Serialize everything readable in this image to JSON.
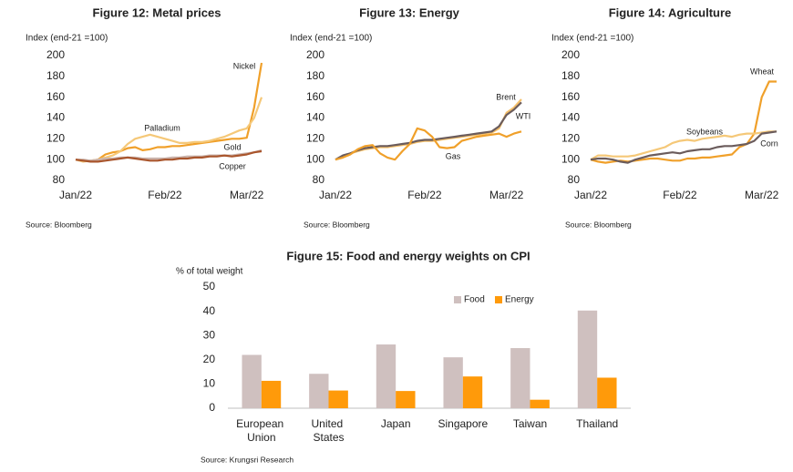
{
  "chart_data": [
    {
      "type": "line",
      "title": "Figure 12: Metal prices",
      "y_label": "Index (end-21 =100)",
      "source": "Source: Bloomberg",
      "categories": [
        "Jan/22",
        null,
        null,
        null,
        null,
        null,
        null,
        null,
        null,
        null,
        null,
        null,
        "Feb/22",
        null,
        null,
        null,
        null,
        null,
        null,
        null,
        null,
        null,
        null,
        "Mar/22",
        null,
        null
      ],
      "ylim": [
        80,
        200
      ],
      "yticks": [
        80,
        100,
        120,
        140,
        160,
        180,
        200
      ],
      "series": [
        {
          "name": "Nickel",
          "color": "#f0a02a",
          "values": [
            100,
            99,
            99,
            100,
            105,
            107,
            108,
            111,
            112,
            109,
            110,
            112,
            112,
            113,
            113,
            114,
            115,
            116,
            117,
            118,
            119,
            120,
            120,
            121,
            150,
            193
          ]
        },
        {
          "name": "Palladium",
          "color": "#f5c878",
          "values": [
            100,
            98,
            99,
            100,
            102,
            104,
            108,
            115,
            120,
            122,
            124,
            122,
            120,
            118,
            116,
            116,
            117,
            117,
            118,
            120,
            122,
            125,
            128,
            130,
            140,
            160
          ]
        },
        {
          "name": "Gold",
          "color": "#c9b2aa",
          "values": [
            100,
            100,
            99,
            100,
            101,
            101,
            102,
            102,
            102,
            101,
            101,
            101,
            101,
            102,
            102,
            103,
            103,
            103,
            104,
            104,
            104,
            104,
            105,
            106,
            107,
            109
          ]
        },
        {
          "name": "Copper",
          "color": "#a9552c",
          "values": [
            100,
            99,
            98,
            98,
            99,
            100,
            101,
            102,
            101,
            100,
            99,
            99,
            100,
            100,
            101,
            101,
            102,
            102,
            103,
            103,
            104,
            103,
            104,
            105,
            107,
            108
          ]
        }
      ]
    },
    {
      "type": "line",
      "title": "Figure 13: Energy",
      "y_label": "Index (end-21 =100)",
      "source": "Source: Bloomberg",
      "categories": [
        "Jan/22",
        null,
        null,
        null,
        null,
        null,
        null,
        null,
        null,
        null,
        null,
        null,
        "Feb/22",
        null,
        null,
        null,
        null,
        null,
        null,
        null,
        null,
        null,
        null,
        "Mar/22",
        null,
        null
      ],
      "ylim": [
        80,
        200
      ],
      "yticks": [
        80,
        100,
        120,
        140,
        160,
        180,
        200
      ],
      "series": [
        {
          "name": "Brent",
          "color": "#f5c06a",
          "values": [
            100,
            103,
            106,
            108,
            110,
            111,
            112,
            112,
            113,
            114,
            115,
            117,
            118,
            118,
            119,
            120,
            121,
            122,
            123,
            124,
            125,
            126,
            130,
            145,
            150,
            158
          ]
        },
        {
          "name": "WTI",
          "color": "#6b5c5c",
          "values": [
            100,
            104,
            106,
            109,
            111,
            112,
            113,
            113,
            114,
            115,
            116,
            118,
            119,
            119,
            120,
            121,
            122,
            123,
            124,
            125,
            126,
            127,
            132,
            143,
            148,
            155
          ]
        },
        {
          "name": "Gas",
          "color": "#f0a02a",
          "values": [
            100,
            102,
            105,
            110,
            113,
            114,
            106,
            102,
            100,
            108,
            115,
            130,
            128,
            122,
            112,
            111,
            112,
            118,
            120,
            122,
            123,
            124,
            125,
            122,
            125,
            127
          ]
        }
      ]
    },
    {
      "type": "line",
      "title": "Figure 14: Agriculture",
      "y_label": "Index (end-21 =100)",
      "source": "Source: Bloomberg",
      "categories": [
        "Jan/22",
        null,
        null,
        null,
        null,
        null,
        null,
        null,
        null,
        null,
        null,
        null,
        "Feb/22",
        null,
        null,
        null,
        null,
        null,
        null,
        null,
        null,
        null,
        null,
        "Mar/22",
        null,
        null
      ],
      "ylim": [
        80,
        200
      ],
      "yticks": [
        80,
        100,
        120,
        140,
        160,
        180,
        200
      ],
      "series": [
        {
          "name": "Wheat",
          "color": "#f0a02a",
          "values": [
            100,
            98,
            97,
            98,
            99,
            98,
            99,
            100,
            101,
            101,
            100,
            99,
            99,
            101,
            101,
            102,
            102,
            103,
            104,
            105,
            112,
            115,
            125,
            160,
            175,
            175
          ]
        },
        {
          "name": "Soybeans",
          "color": "#f5c878",
          "values": [
            100,
            104,
            104,
            103,
            103,
            103,
            104,
            106,
            108,
            110,
            112,
            116,
            118,
            119,
            118,
            120,
            121,
            122,
            123,
            122,
            124,
            125,
            125,
            126,
            127,
            127
          ]
        },
        {
          "name": "Corn",
          "color": "#6b5c5c",
          "values": [
            100,
            101,
            101,
            100,
            98,
            97,
            100,
            102,
            104,
            105,
            106,
            107,
            106,
            108,
            109,
            110,
            110,
            112,
            113,
            113,
            114,
            115,
            118,
            125,
            126,
            127
          ]
        }
      ]
    },
    {
      "type": "bar",
      "title": "Figure 15: Food and energy weights on CPI",
      "y_label": "% of total weight",
      "source": "Source: Krungsri Research",
      "categories": [
        "European Union",
        "United States",
        "Japan",
        "Singapore",
        "Taiwan",
        "Thailand"
      ],
      "ylim": [
        0,
        50
      ],
      "yticks": [
        0,
        10,
        20,
        30,
        40,
        50
      ],
      "series": [
        {
          "name": "Food",
          "color": "#cfc0bf",
          "values": [
            22,
            14.2,
            26.3,
            21,
            24.8,
            40.3
          ]
        },
        {
          "name": "Energy",
          "color": "#ff9a0a",
          "values": [
            11.3,
            7.3,
            7.1,
            13.1,
            3.5,
            12.6
          ]
        }
      ]
    }
  ]
}
